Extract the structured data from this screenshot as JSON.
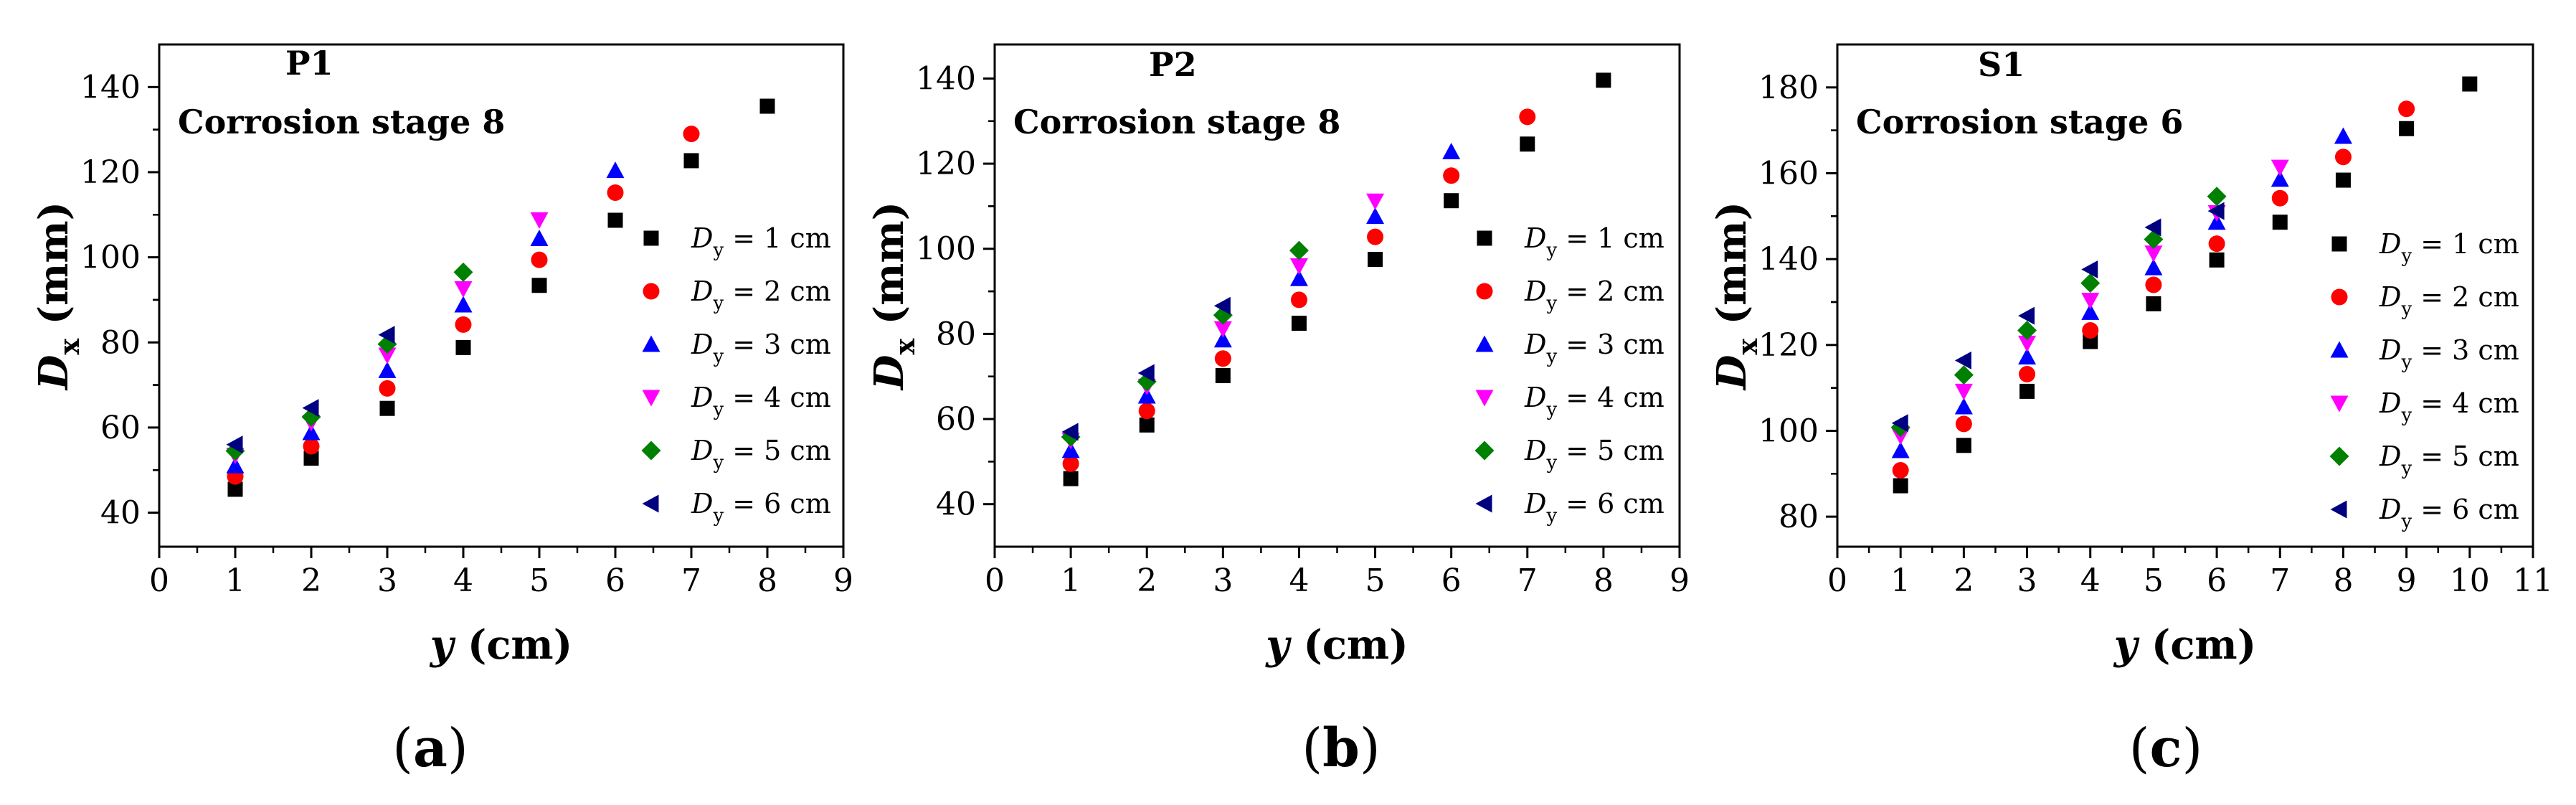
{
  "figure": {
    "captions": [
      "a",
      "b",
      "c"
    ]
  },
  "series_style": [
    {
      "color": "#000000",
      "marker": "square"
    },
    {
      "color": "#ff0000",
      "marker": "circle"
    },
    {
      "color": "#0000ff",
      "marker": "triangle-up"
    },
    {
      "color": "#ff00ff",
      "marker": "triangle-down"
    },
    {
      "color": "#008000",
      "marker": "diamond"
    },
    {
      "color": "#000080",
      "marker": "triangle-left"
    }
  ],
  "chart_data": [
    {
      "type": "scatter",
      "title": "P1",
      "subtitle": "Corrosion stage 8",
      "xlabel_var": "y",
      "xlabel_unit": "(cm)",
      "ylabel_var": "D",
      "ylabel_sub": "x",
      "ylabel_unit": "(mm)",
      "xlim": [
        0,
        9
      ],
      "ylim": [
        32,
        150
      ],
      "xticks": [
        0,
        1,
        2,
        3,
        4,
        5,
        6,
        7,
        8,
        9
      ],
      "yticks": [
        40,
        60,
        80,
        100,
        120,
        140
      ],
      "legend_placement": "right",
      "series": [
        {
          "name": "Dy = 1 cm",
          "label_var": "D",
          "label_sub": "y",
          "label_rest": " = 1 cm",
          "x": [
            1,
            2,
            3,
            4,
            5,
            6,
            7,
            8
          ],
          "y": [
            45.5,
            52.8,
            64.5,
            78.8,
            93.4,
            108.7,
            122.7,
            135.5
          ]
        },
        {
          "name": "Dy = 2 cm",
          "label_var": "D",
          "label_sub": "y",
          "label_rest": " = 2 cm",
          "x": [
            1,
            2,
            3,
            4,
            5,
            6,
            7
          ],
          "y": [
            48.5,
            55.6,
            69.2,
            84.2,
            99.4,
            115.2,
            129.0
          ]
        },
        {
          "name": "Dy = 3 cm",
          "label_var": "D",
          "label_sub": "y",
          "label_rest": " = 3 cm",
          "x": [
            1,
            2,
            3,
            4,
            5,
            6
          ],
          "y": [
            51.0,
            58.8,
            73.4,
            88.8,
            104.4,
            120.4
          ]
        },
        {
          "name": "Dy = 4 cm",
          "label_var": "D",
          "label_sub": "y",
          "label_rest": " = 4 cm",
          "x": [
            1,
            2,
            3,
            4,
            5
          ],
          "y": [
            53.5,
            61.2,
            77.0,
            92.6,
            108.8
          ]
        },
        {
          "name": "Dy = 5 cm",
          "label_var": "D",
          "label_sub": "y",
          "label_rest": " = 5 cm",
          "x": [
            1,
            2,
            3,
            4
          ],
          "y": [
            54.5,
            62.5,
            79.6,
            96.5
          ]
        },
        {
          "name": "Dy = 6 cm",
          "label_var": "D",
          "label_sub": "y",
          "label_rest": " = 6 cm",
          "x": [
            1,
            2,
            3
          ],
          "y": [
            56.0,
            64.6,
            81.8
          ]
        }
      ]
    },
    {
      "type": "scatter",
      "title": "P2",
      "subtitle": "Corrosion stage 8",
      "xlabel_var": "y",
      "xlabel_unit": "(cm)",
      "ylabel_var": "D",
      "ylabel_sub": "x",
      "ylabel_unit": "(mm)",
      "xlim": [
        0,
        9
      ],
      "ylim": [
        30,
        148
      ],
      "xticks": [
        0,
        1,
        2,
        3,
        4,
        5,
        6,
        7,
        8,
        9
      ],
      "yticks": [
        40,
        60,
        80,
        100,
        120,
        140
      ],
      "legend_placement": "right",
      "series": [
        {
          "name": "Dy = 1 cm",
          "label_var": "D",
          "label_sub": "y",
          "label_rest": " = 1 cm",
          "x": [
            1,
            2,
            3,
            4,
            5,
            6,
            7,
            8
          ],
          "y": [
            46.0,
            58.6,
            70.2,
            82.5,
            97.5,
            111.3,
            124.6,
            139.6
          ]
        },
        {
          "name": "Dy = 2 cm",
          "label_var": "D",
          "label_sub": "y",
          "label_rest": " = 2 cm",
          "x": [
            1,
            2,
            3,
            4,
            5,
            6,
            7
          ],
          "y": [
            49.5,
            61.9,
            74.2,
            88.0,
            102.8,
            117.2,
            131.0
          ]
        },
        {
          "name": "Dy = 3 cm",
          "label_var": "D",
          "label_sub": "y",
          "label_rest": " = 3 cm",
          "x": [
            1,
            2,
            3,
            4,
            5,
            6
          ],
          "y": [
            52.6,
            65.4,
            78.6,
            93.0,
            107.6,
            122.8
          ]
        },
        {
          "name": "Dy = 4 cm",
          "label_var": "D",
          "label_sub": "y",
          "label_rest": " = 4 cm",
          "x": [
            1,
            2,
            3,
            4,
            5
          ],
          "y": [
            55.0,
            67.7,
            81.2,
            96.0,
            111.2
          ]
        },
        {
          "name": "Dy = 5 cm",
          "label_var": "D",
          "label_sub": "y",
          "label_rest": " = 5 cm",
          "x": [
            1,
            2,
            3,
            4
          ],
          "y": [
            55.8,
            68.8,
            84.4,
            99.6
          ]
        },
        {
          "name": "Dy = 6 cm",
          "label_var": "D",
          "label_sub": "y",
          "label_rest": " = 6 cm",
          "x": [
            1,
            2,
            3
          ],
          "y": [
            57.0,
            70.8,
            86.6
          ]
        }
      ]
    },
    {
      "type": "scatter",
      "title": "S1",
      "subtitle": "Corrosion stage 6",
      "xlabel_var": "y",
      "xlabel_unit": "(cm)",
      "ylabel_var": "D",
      "ylabel_sub": "x",
      "ylabel_unit": "(mm)",
      "xlim": [
        0,
        11
      ],
      "ylim": [
        73,
        190
      ],
      "xticks": [
        0,
        1,
        2,
        3,
        4,
        5,
        6,
        7,
        8,
        9,
        10,
        11
      ],
      "yticks": [
        80,
        100,
        120,
        140,
        160,
        180
      ],
      "legend_placement": "right",
      "series": [
        {
          "name": "Dy = 1 cm",
          "label_var": "D",
          "label_sub": "y",
          "label_rest": " = 1 cm",
          "x": [
            1,
            2,
            3,
            4,
            5,
            6,
            7,
            8,
            9,
            10
          ],
          "y": [
            87.2,
            96.6,
            109.2,
            120.8,
            129.6,
            139.8,
            148.6,
            158.4,
            170.4,
            180.8
          ]
        },
        {
          "name": "Dy = 2 cm",
          "label_var": "D",
          "label_sub": "y",
          "label_rest": " = 2 cm",
          "x": [
            1,
            2,
            3,
            4,
            5,
            6,
            7,
            8,
            9
          ],
          "y": [
            90.8,
            101.6,
            113.2,
            123.4,
            134.0,
            143.6,
            154.2,
            163.8,
            175.0
          ]
        },
        {
          "name": "Dy = 3 cm",
          "label_var": "D",
          "label_sub": "y",
          "label_rest": " = 3 cm",
          "x": [
            1,
            2,
            3,
            4,
            5,
            6,
            7,
            8
          ],
          "y": [
            95.4,
            105.6,
            117.2,
            127.6,
            138.0,
            148.6,
            158.6,
            168.6
          ]
        },
        {
          "name": "Dy = 4 cm",
          "label_var": "D",
          "label_sub": "y",
          "label_rest": " = 4 cm",
          "x": [
            1,
            2,
            3,
            4,
            5,
            6,
            7
          ],
          "y": [
            98.8,
            109.2,
            120.4,
            130.4,
            141.4,
            150.8,
            161.4
          ]
        },
        {
          "name": "Dy = 5 cm",
          "label_var": "D",
          "label_sub": "y",
          "label_rest": " = 5 cm",
          "x": [
            1,
            2,
            3,
            4,
            5,
            6
          ],
          "y": [
            100.8,
            113.0,
            123.4,
            134.4,
            144.6,
            154.6
          ]
        },
        {
          "name": "Dy = 6 cm",
          "label_var": "D",
          "label_sub": "y",
          "label_rest": " = 6 cm",
          "x": [
            1,
            2,
            3,
            4,
            5,
            6
          ],
          "y": [
            101.8,
            116.4,
            126.8,
            137.6,
            147.4,
            151.2
          ]
        }
      ]
    }
  ]
}
